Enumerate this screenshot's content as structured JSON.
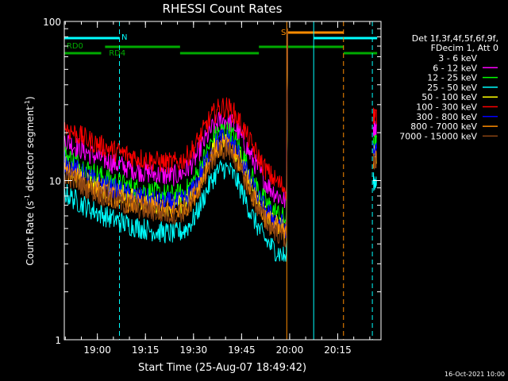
{
  "chart_data": {
    "type": "line",
    "title": "RHESSI Count Rates",
    "xlabel": "Start Time (25-Aug-07 18:49:42)",
    "ylabel_main": "Count Rate (s",
    "ylabel_sup": "-1",
    "ylabel_rest": " detector segment",
    "ylabel_sup2": "-1",
    "ylabel_end": ")",
    "yscale": "log",
    "ylim": [
      1,
      100
    ],
    "xlim_minutes": [
      18.828,
      20.475
    ],
    "xtick_labels": [
      "19:00",
      "19:15",
      "19:30",
      "19:45",
      "20:00",
      "20:15"
    ],
    "xtick_hours": [
      19.0,
      19.25,
      19.5,
      19.75,
      20.0,
      20.25
    ],
    "ytick_labels": [
      "1",
      "10",
      "100"
    ],
    "ytick_values": [
      1,
      10,
      100
    ],
    "footer_date": "16-Oct-2021 10:00",
    "legend_header": [
      "Det 1f,3f,4f,5f,6f,9f,",
      "FDecim 1, Att 0"
    ],
    "series": [
      {
        "name": "3 - 6 keV",
        "color": "#000000",
        "profile": "low",
        "offset": 0.0
      },
      {
        "name": "6 - 12 keV",
        "color": "#ff00ff",
        "profile": "high",
        "offset": -0.05
      },
      {
        "name": "12 - 25 keV",
        "color": "#00ff00",
        "profile": "low",
        "offset": 0.12
      },
      {
        "name": "25 - 50 keV",
        "color": "#00ffff",
        "profile": "low",
        "offset": -0.12
      },
      {
        "name": "50 - 100 keV",
        "color": "#ffff00",
        "profile": "low",
        "offset": 0.05
      },
      {
        "name": "100 - 300 keV",
        "color": "#ff0000",
        "profile": "high",
        "offset": 0.03
      },
      {
        "name": "300 - 800 keV",
        "color": "#0000ff",
        "profile": "low",
        "offset": 0.07
      },
      {
        "name": "800 - 7000 keV",
        "color": "#ff8c00",
        "profile": "low",
        "offset": 0.02
      },
      {
        "name": "7000 - 15000 keV",
        "color": "#8b4513",
        "profile": "low",
        "offset": 0.0
      }
    ],
    "attenuator_labels": {
      "rd0": "RD0",
      "rd4": "RD4",
      "n": "N",
      "s": "S"
    },
    "flags_colors": {
      "decim": "#00aa00",
      "night": "#00ffff",
      "saa": "#ff8c00"
    }
  }
}
